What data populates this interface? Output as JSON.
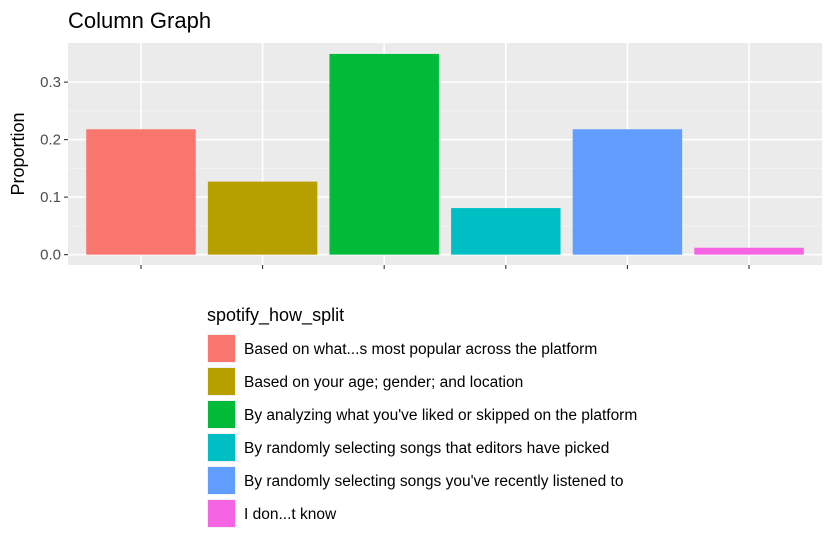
{
  "chart_data": {
    "type": "bar",
    "title": "Column Graph",
    "xlabel": "",
    "ylabel": "Proportion",
    "ylim": [
      -0.018,
      0.368
    ],
    "yticks": [
      0.0,
      0.1,
      0.2,
      0.3
    ],
    "ytick_labels": [
      "0.0",
      "0.1",
      "0.2",
      "0.3"
    ],
    "grid": true,
    "legend_position": "bottom",
    "legend_title": "spotify_how_split",
    "categories": [
      "Based on what...s most popular across the platform",
      "Based on your age; gender; and location",
      "By analyzing what you've liked or skipped on the platform",
      "By randomly selecting songs that editors have picked",
      "By randomly selecting songs you've recently listened to",
      "I don...t know"
    ],
    "values": [
      0.218,
      0.127,
      0.349,
      0.081,
      0.218,
      0.012
    ],
    "colors": [
      "#F8766D",
      "#B79F00",
      "#00BA38",
      "#00BFC4",
      "#619CFF",
      "#F564E3"
    ]
  }
}
